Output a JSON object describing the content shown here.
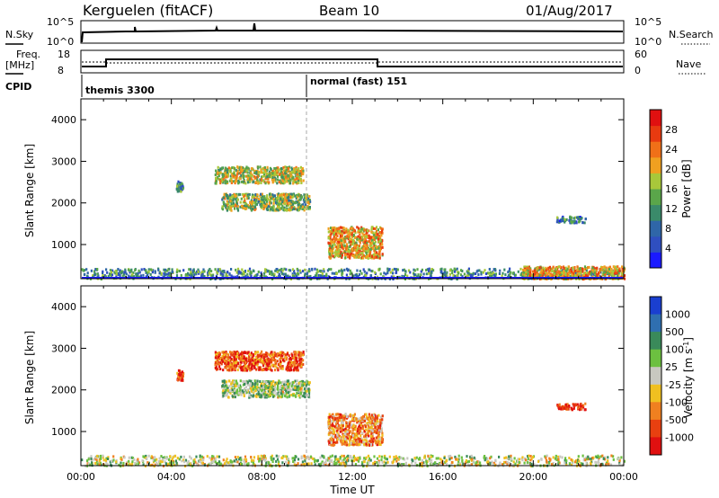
{
  "header": {
    "radar": "Kerguelen (fitACF)",
    "beam": "Beam 10",
    "date": "01/Aug/2017"
  },
  "status": {
    "nsky_label": "N.Sky",
    "nsky_top": "10^5",
    "nsky_bot": "10^0",
    "nsearch_label": "N.Search",
    "nsearch_top": "10^5",
    "nsearch_bot": "10^0",
    "freq_label": "Freq.",
    "freq_unit": "[MHz]",
    "freq_top": "18",
    "freq_bot": "8",
    "nave_label": "Nave",
    "nave_top": "60",
    "nave_bot": "0",
    "cpid_label": "CPID",
    "modes": [
      {
        "label": "themis 3300",
        "start_hour": 0
      },
      {
        "label": "normal (fast) 151",
        "start_hour": 10
      }
    ]
  },
  "chart_data": [
    {
      "type": "heatmap",
      "name": "power",
      "ylabel": "Slant Range [km]",
      "xlabel": "",
      "xlim": [
        0,
        24
      ],
      "ylim": [
        180,
        4500
      ],
      "yticks": [
        1000,
        2000,
        3000,
        4000
      ],
      "colorbar": {
        "label": "Power [dB]",
        "range": [
          0,
          32
        ],
        "ticks": [
          "4",
          "8",
          "12",
          "16",
          "20",
          "24",
          "28"
        ],
        "colors": [
          "#1a1aff",
          "#2f4fc0",
          "#2f66a8",
          "#3a8a6a",
          "#5aa64a",
          "#a8c83a",
          "#f0a020",
          "#f07018",
          "#e83a10",
          "#e01010"
        ]
      },
      "regions": [
        {
          "t": [
            5.9,
            9.8
          ],
          "r": [
            2500,
            2900
          ],
          "level": 0.55
        },
        {
          "t": [
            6.2,
            10.1
          ],
          "r": [
            1850,
            2250
          ],
          "level": 0.5
        },
        {
          "t": [
            10.9,
            13.3
          ],
          "r": [
            700,
            1450
          ],
          "level": 0.65
        },
        {
          "t": [
            4.2,
            4.5
          ],
          "r": [
            2300,
            2550
          ],
          "level": 0.3
        },
        {
          "t": [
            0,
            24
          ],
          "r": [
            200,
            450
          ],
          "level": 0.35
        },
        {
          "t": [
            19.5,
            24
          ],
          "r": [
            200,
            500
          ],
          "level": 0.65
        },
        {
          "t": [
            21,
            22.3
          ],
          "r": [
            1550,
            1700
          ],
          "level": 0.3
        }
      ]
    },
    {
      "type": "heatmap",
      "name": "velocity",
      "ylabel": "Slant Range [km]",
      "xlabel": "Time UT",
      "xlim": [
        0,
        24
      ],
      "ylim": [
        180,
        4500
      ],
      "yticks": [
        1000,
        2000,
        3000,
        4000
      ],
      "xtick_labels": [
        "00:00",
        "04:00",
        "08:00",
        "12:00",
        "16:00",
        "20:00",
        "00:00"
      ],
      "colorbar": {
        "label": "Velocity [m s^-1]",
        "ticks": [
          "1000",
          "500",
          "100",
          "25",
          "-25",
          "-100",
          "-500",
          "-1000"
        ],
        "colors": [
          "#1a3fd0",
          "#2f6fb0",
          "#3a8a5a",
          "#6cc040",
          "#c8c8c0",
          "#f0c020",
          "#f08020",
          "#e84010",
          "#e01010"
        ]
      },
      "regions": [
        {
          "t": [
            5.9,
            9.8
          ],
          "r": [
            2500,
            2950
          ],
          "level": 0.8
        },
        {
          "t": [
            6.2,
            10.1
          ],
          "r": [
            1850,
            2250
          ],
          "level": 0.45
        },
        {
          "t": [
            10.9,
            13.3
          ],
          "r": [
            700,
            1450
          ],
          "level": 0.7
        },
        {
          "t": [
            4.2,
            4.5
          ],
          "r": [
            2250,
            2500
          ],
          "level": 0.85
        },
        {
          "t": [
            0,
            24
          ],
          "r": [
            200,
            450
          ],
          "level": 0.5
        },
        {
          "t": [
            21,
            22.3
          ],
          "r": [
            1550,
            1700
          ],
          "level": 0.9
        }
      ]
    }
  ]
}
